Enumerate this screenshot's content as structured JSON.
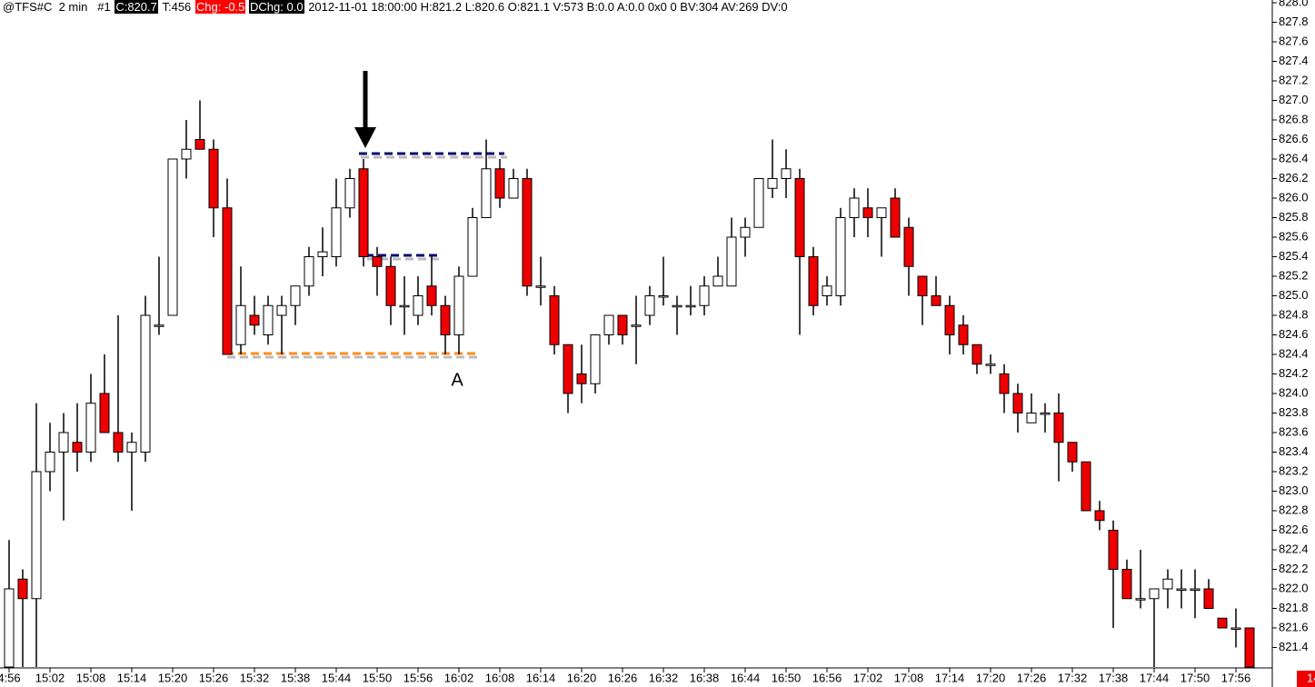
{
  "chart_data": {
    "type": "candlestick",
    "header": [
      {
        "text": "@TFS#C  2 min   #1"
      },
      {
        "text": "C:820.7",
        "background": "#000000",
        "color": "#ffffff"
      },
      {
        "text": "T:456"
      },
      {
        "text": "Chg: -0.5",
        "background": "#ff0000",
        "color": "#ffffff"
      },
      {
        "text": "DChg: 0.0",
        "background": "#000000",
        "color": "#ffffff"
      },
      {
        "text": "2012-11-01 18:00:00 H:821.2 L:820.6 O:821.1 V:573 B:0.0 A:0.0 0x0 0 BV:304 AV:269 DV:0"
      }
    ],
    "annotation": "A",
    "corner_label": "14",
    "up_color": "#ffffff",
    "down_color": "#ee0000",
    "categories": [
      "4:56",
      null,
      null,
      "15:02",
      null,
      null,
      "15:08",
      null,
      null,
      "15:14",
      null,
      null,
      "15:20",
      null,
      null,
      "15:26",
      null,
      null,
      "15:32",
      null,
      null,
      "15:38",
      null,
      null,
      "15:44",
      null,
      null,
      "15:50",
      null,
      null,
      "15:56",
      null,
      null,
      "16:02",
      null,
      null,
      "16:08",
      null,
      null,
      "16:14",
      null,
      null,
      "16:20",
      null,
      null,
      "16:26",
      null,
      null,
      "16:32",
      null,
      null,
      "16:38",
      null,
      null,
      "16:44",
      null,
      null,
      "16:50",
      null,
      null,
      "16:56",
      null,
      null,
      "17:02",
      null,
      null,
      "17:08",
      null,
      null,
      "17:14",
      null,
      null,
      "17:20",
      null,
      null,
      "17:26",
      null,
      null,
      "17:32",
      null,
      null,
      "17:38",
      null,
      null,
      "17:44",
      null,
      null,
      "17:50",
      null,
      null,
      "17:56",
      null
    ],
    "open": [
      821.2,
      822.1,
      821.9,
      823.2,
      823.4,
      823.5,
      823.4,
      824.0,
      823.6,
      823.4,
      823.4,
      824.7,
      824.8,
      826.4,
      826.6,
      826.5,
      825.9,
      824.5,
      824.8,
      824.6,
      824.8,
      824.9,
      825.1,
      825.4,
      825.4,
      825.9,
      826.3,
      825.4,
      825.3,
      824.9,
      824.8,
      825.1,
      824.9,
      824.6,
      825.2,
      825.8,
      826.3,
      826.0,
      826.2,
      825.1,
      825.0,
      824.5,
      824.2,
      824.1,
      824.6,
      824.8,
      824.7,
      824.8,
      825.0,
      824.9,
      824.9,
      824.9,
      825.1,
      825.1,
      825.6,
      825.7,
      826.1,
      826.2,
      826.2,
      825.4,
      825.0,
      825.0,
      825.8,
      825.9,
      825.8,
      826.0,
      825.7,
      825.2,
      825.0,
      824.9,
      824.7,
      824.5,
      824.3,
      824.2,
      824.0,
      823.7,
      823.8,
      823.8,
      823.5,
      823.3,
      822.8,
      822.6,
      822.2,
      821.9,
      821.9,
      822.0,
      822.0,
      822.0,
      822.0,
      821.7,
      821.6,
      821.6
    ],
    "high": [
      822.5,
      822.2,
      823.9,
      823.7,
      823.8,
      823.9,
      824.2,
      824.4,
      824.8,
      823.6,
      825.0,
      825.4,
      826.4,
      826.8,
      827.0,
      826.6,
      826.2,
      825.3,
      825.0,
      825.0,
      825.0,
      825.1,
      825.5,
      825.7,
      826.2,
      826.3,
      826.4,
      825.5,
      825.4,
      825.2,
      825.2,
      825.4,
      825.0,
      825.3,
      825.9,
      826.6,
      826.4,
      826.3,
      826.3,
      825.4,
      825.1,
      824.5,
      824.5,
      824.6,
      824.8,
      824.8,
      825.0,
      825.1,
      825.4,
      825.0,
      825.1,
      825.2,
      825.4,
      825.8,
      825.8,
      826.2,
      826.6,
      826.5,
      826.3,
      825.5,
      825.2,
      825.9,
      826.1,
      826.1,
      825.9,
      826.1,
      825.8,
      825.2,
      825.2,
      825.0,
      824.8,
      824.5,
      824.4,
      824.3,
      824.1,
      824.0,
      823.9,
      824.0,
      823.5,
      823.3,
      822.9,
      822.7,
      822.3,
      822.4,
      822.0,
      822.2,
      822.2,
      822.2,
      822.1,
      821.7,
      821.8,
      821.6
    ],
    "low": [
      821.2,
      821.2,
      821.2,
      823.0,
      822.7,
      823.2,
      823.3,
      823.6,
      823.3,
      822.8,
      823.3,
      824.6,
      824.8,
      826.2,
      826.5,
      825.6,
      824.4,
      824.4,
      824.6,
      824.5,
      824.4,
      824.7,
      825.0,
      825.2,
      825.3,
      825.8,
      825.3,
      825.0,
      824.7,
      824.6,
      824.7,
      824.8,
      824.4,
      824.4,
      825.2,
      825.8,
      825.9,
      826.0,
      825.0,
      824.9,
      824.4,
      823.8,
      823.9,
      824.0,
      824.5,
      824.5,
      824.3,
      824.7,
      824.9,
      824.6,
      824.8,
      824.8,
      825.1,
      825.1,
      825.4,
      825.7,
      826.0,
      826.0,
      824.6,
      824.8,
      824.9,
      824.9,
      825.6,
      825.6,
      825.4,
      825.6,
      825.0,
      824.7,
      824.9,
      824.4,
      824.4,
      824.2,
      824.2,
      823.8,
      823.6,
      823.7,
      823.6,
      823.1,
      823.2,
      822.8,
      822.6,
      821.6,
      821.9,
      821.8,
      821.2,
      821.8,
      821.8,
      821.7,
      821.8,
      821.6,
      821.4,
      821.2
    ],
    "close": [
      822.0,
      821.9,
      823.2,
      823.4,
      823.6,
      823.4,
      823.9,
      823.6,
      823.4,
      823.5,
      824.8,
      824.7,
      826.4,
      826.5,
      826.5,
      825.9,
      824.4,
      824.9,
      824.7,
      824.9,
      824.9,
      825.1,
      825.4,
      825.45,
      825.9,
      826.2,
      825.4,
      825.3,
      824.9,
      824.9,
      825.0,
      824.9,
      824.6,
      825.2,
      825.8,
      826.3,
      826.0,
      826.2,
      825.1,
      825.1,
      824.5,
      824.0,
      824.1,
      824.6,
      824.8,
      824.6,
      824.7,
      825.0,
      825.0,
      824.9,
      824.9,
      825.1,
      825.2,
      825.6,
      825.7,
      826.2,
      826.2,
      826.3,
      825.4,
      824.9,
      825.1,
      825.8,
      826.0,
      825.8,
      825.9,
      825.6,
      825.3,
      825.0,
      824.9,
      824.6,
      824.5,
      824.3,
      824.3,
      824.0,
      823.8,
      823.8,
      823.8,
      823.5,
      823.3,
      822.8,
      822.7,
      822.2,
      821.9,
      821.9,
      822.0,
      822.1,
      822.0,
      822.0,
      821.8,
      821.6,
      821.6,
      821.2
    ],
    "ylim": [
      821.2,
      828.0
    ],
    "yticks": [
      821.4,
      821.6,
      821.8,
      {
        "value": 822,
        "label": "822.0"
      },
      822.2,
      822.4,
      822.6,
      822.8,
      {
        "value": 823,
        "label": "823.0"
      },
      823.2,
      823.4,
      823.6,
      823.8,
      {
        "value": 824,
        "label": "824.0"
      },
      824.2,
      824.4,
      824.6,
      824.8,
      {
        "value": 825,
        "label": "825.0"
      },
      825.2,
      825.4,
      825.6,
      825.8,
      {
        "value": 826,
        "label": "826.0"
      },
      826.2,
      826.4,
      826.6,
      826.8,
      {
        "value": 827,
        "label": "827.0"
      },
      827.2,
      827.4,
      827.6,
      827.8,
      {
        "value": 828,
        "label": "828.0"
      }
    ]
  }
}
